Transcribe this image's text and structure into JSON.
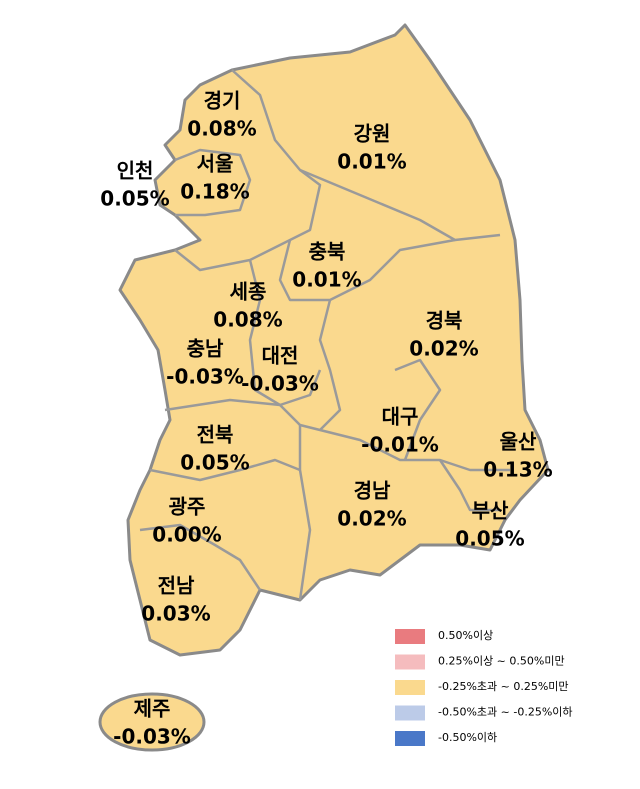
{
  "regions": [
    {
      "name": "경기",
      "value": "0.08%"
    },
    {
      "name": "인천",
      "value": "0.05%"
    },
    {
      "name": "서울",
      "value": "0.18%"
    },
    {
      "name": "강원",
      "value": "0.01%"
    },
    {
      "name": "충북",
      "value": "0.01%"
    },
    {
      "name": "세종",
      "value": "0.08%"
    },
    {
      "name": "충남",
      "value": "-0.03%"
    },
    {
      "name": "대전",
      "value": "-0.03%"
    },
    {
      "name": "경북",
      "value": "0.02%"
    },
    {
      "name": "대구",
      "value": "-0.01%"
    },
    {
      "name": "울산",
      "value": "0.13%"
    },
    {
      "name": "전북",
      "value": "0.05%"
    },
    {
      "name": "경남",
      "value": "0.02%"
    },
    {
      "name": "부산",
      "value": "0.05%"
    },
    {
      "name": "광주",
      "value": "0.00%"
    },
    {
      "name": "전남",
      "value": "0.03%"
    },
    {
      "name": "제주",
      "value": "-0.03%"
    }
  ],
  "legend": {
    "items": [
      {
        "label": "0.50%이상",
        "color": "#e97b7f"
      },
      {
        "label": "0.25%이상 ~ 0.50%미만",
        "color": "#f5bcbe"
      },
      {
        "label": "-0.25%초과 ~ 0.25%미만",
        "color": "#fad98e"
      },
      {
        "label": "-0.50%초과 ~ -0.25%이하",
        "color": "#bccbe8"
      },
      {
        "label": "-0.50%이하",
        "color": "#4a78c8"
      }
    ]
  }
}
